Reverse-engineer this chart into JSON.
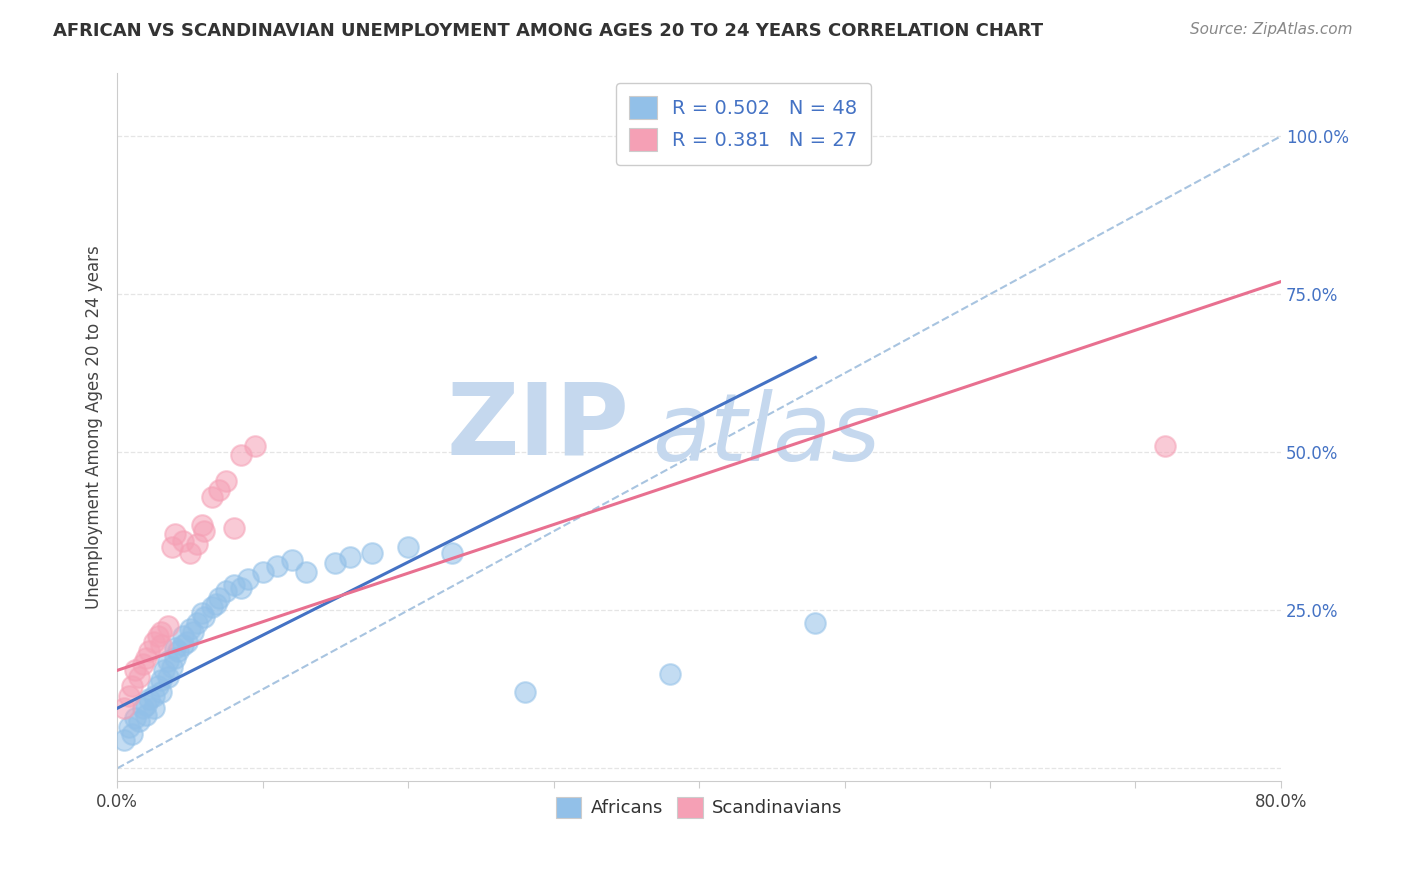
{
  "title": "AFRICAN VS SCANDINAVIAN UNEMPLOYMENT AMONG AGES 20 TO 24 YEARS CORRELATION CHART",
  "source": "Source: ZipAtlas.com",
  "ylabel": "Unemployment Among Ages 20 to 24 years",
  "xlim": [
    0.0,
    0.8
  ],
  "ylim": [
    -0.02,
    1.1
  ],
  "xticks": [
    0.0,
    0.1,
    0.2,
    0.3,
    0.4,
    0.5,
    0.6,
    0.7,
    0.8
  ],
  "xticklabels": [
    "0.0%",
    "",
    "",
    "",
    "",
    "",
    "",
    "",
    "80.0%"
  ],
  "ytick_positions": [
    0.0,
    0.25,
    0.5,
    0.75,
    1.0
  ],
  "ytick_labels": [
    "",
    "25.0%",
    "50.0%",
    "75.0%",
    "100.0%"
  ],
  "african_color": "#92C0E8",
  "scandinavian_color": "#F5A0B5",
  "african_R": 0.502,
  "african_N": 48,
  "scandinavian_R": 0.381,
  "scandinavian_N": 27,
  "african_scatter": [
    [
      0.005,
      0.045
    ],
    [
      0.008,
      0.065
    ],
    [
      0.01,
      0.055
    ],
    [
      0.012,
      0.08
    ],
    [
      0.015,
      0.075
    ],
    [
      0.018,
      0.095
    ],
    [
      0.02,
      0.085
    ],
    [
      0.02,
      0.1
    ],
    [
      0.022,
      0.11
    ],
    [
      0.025,
      0.115
    ],
    [
      0.025,
      0.095
    ],
    [
      0.028,
      0.13
    ],
    [
      0.03,
      0.12
    ],
    [
      0.03,
      0.14
    ],
    [
      0.032,
      0.155
    ],
    [
      0.035,
      0.145
    ],
    [
      0.035,
      0.17
    ],
    [
      0.038,
      0.16
    ],
    [
      0.04,
      0.175
    ],
    [
      0.04,
      0.19
    ],
    [
      0.042,
      0.185
    ],
    [
      0.045,
      0.195
    ],
    [
      0.045,
      0.21
    ],
    [
      0.048,
      0.2
    ],
    [
      0.05,
      0.22
    ],
    [
      0.052,
      0.215
    ],
    [
      0.055,
      0.23
    ],
    [
      0.058,
      0.245
    ],
    [
      0.06,
      0.24
    ],
    [
      0.065,
      0.255
    ],
    [
      0.068,
      0.26
    ],
    [
      0.07,
      0.27
    ],
    [
      0.075,
      0.28
    ],
    [
      0.08,
      0.29
    ],
    [
      0.085,
      0.285
    ],
    [
      0.09,
      0.3
    ],
    [
      0.1,
      0.31
    ],
    [
      0.11,
      0.32
    ],
    [
      0.12,
      0.33
    ],
    [
      0.13,
      0.31
    ],
    [
      0.15,
      0.325
    ],
    [
      0.16,
      0.335
    ],
    [
      0.175,
      0.34
    ],
    [
      0.2,
      0.35
    ],
    [
      0.23,
      0.34
    ],
    [
      0.28,
      0.12
    ],
    [
      0.38,
      0.15
    ],
    [
      0.48,
      0.23
    ]
  ],
  "scandinavian_scatter": [
    [
      0.005,
      0.095
    ],
    [
      0.008,
      0.115
    ],
    [
      0.01,
      0.13
    ],
    [
      0.012,
      0.155
    ],
    [
      0.015,
      0.145
    ],
    [
      0.018,
      0.165
    ],
    [
      0.02,
      0.175
    ],
    [
      0.022,
      0.185
    ],
    [
      0.025,
      0.2
    ],
    [
      0.028,
      0.21
    ],
    [
      0.03,
      0.195
    ],
    [
      0.03,
      0.215
    ],
    [
      0.035,
      0.225
    ],
    [
      0.038,
      0.35
    ],
    [
      0.04,
      0.37
    ],
    [
      0.045,
      0.36
    ],
    [
      0.05,
      0.34
    ],
    [
      0.055,
      0.355
    ],
    [
      0.058,
      0.385
    ],
    [
      0.06,
      0.375
    ],
    [
      0.065,
      0.43
    ],
    [
      0.07,
      0.44
    ],
    [
      0.075,
      0.455
    ],
    [
      0.08,
      0.38
    ],
    [
      0.085,
      0.495
    ],
    [
      0.095,
      0.51
    ],
    [
      0.72,
      0.51
    ]
  ],
  "african_line_x": [
    0.0,
    0.48
  ],
  "african_line_y": [
    0.095,
    0.65
  ],
  "african_line_color": "#4472C4",
  "scandinavian_line_x": [
    0.0,
    0.8
  ],
  "scandinavian_line_y": [
    0.155,
    0.77
  ],
  "scandinavian_line_color": "#E87090",
  "ref_line_x": [
    0.0,
    0.8
  ],
  "ref_line_y": [
    0.0,
    1.0
  ],
  "ref_line_color": "#A8C4E0",
  "watermark_zip": "ZIP",
  "watermark_atlas": "atlas",
  "watermark_color": "#C5D8EE",
  "background_color": "#FFFFFF",
  "grid_color": "#E5E5E5",
  "title_fontsize": 13,
  "tick_fontsize": 12,
  "ylabel_fontsize": 12,
  "legend_R_color": "#4472C4",
  "legend_N_color": "#4472C4"
}
